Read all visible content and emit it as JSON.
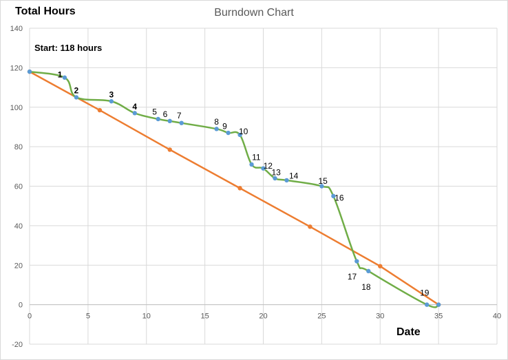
{
  "chart_data": {
    "type": "line",
    "title": "Burndown Chart",
    "ylabel": "Total Hours",
    "xlabel": "Date",
    "note": "Start: 118 hours",
    "xlim": [
      0,
      40
    ],
    "ylim": [
      -20,
      140
    ],
    "x_ticks": [
      0,
      5,
      10,
      15,
      20,
      25,
      30,
      35,
      40
    ],
    "y_ticks": [
      -20,
      0,
      20,
      40,
      60,
      80,
      100,
      120,
      140
    ],
    "grid": true,
    "colors": {
      "ideal": "#ed7d31",
      "actual": "#70ad47",
      "actual_marker": "#5b9bd5",
      "grid": "#d9d9d9"
    },
    "series": [
      {
        "points": [
          [
            0,
            118
          ],
          [
            6,
            98.5
          ],
          [
            12,
            78.5
          ],
          [
            18,
            59
          ],
          [
            24,
            39.5
          ],
          [
            30,
            19.5
          ],
          [
            35,
            0
          ]
        ]
      },
      {
        "points": [
          [
            0,
            118
          ],
          [
            3,
            115
          ],
          [
            4,
            105
          ],
          [
            7,
            103
          ],
          [
            9,
            97
          ],
          [
            11,
            94
          ],
          [
            12,
            93
          ],
          [
            13,
            92
          ],
          [
            16,
            89
          ],
          [
            17,
            87
          ],
          [
            18,
            86
          ],
          [
            19,
            71
          ],
          [
            20,
            69
          ],
          [
            21,
            64
          ],
          [
            22,
            63
          ],
          [
            25,
            60
          ],
          [
            26,
            55
          ],
          [
            28,
            22
          ],
          [
            29,
            17
          ],
          [
            34,
            0
          ],
          [
            35,
            0
          ]
        ]
      }
    ],
    "annotations": [
      {
        "text": "1",
        "x": 2.6,
        "y": 116.5,
        "bold": true
      },
      {
        "text": "2",
        "x": 4.0,
        "y": 108.5,
        "bold": true
      },
      {
        "text": "3",
        "x": 7.0,
        "y": 106.3,
        "bold": true
      },
      {
        "text": "4",
        "x": 9.0,
        "y": 100.2,
        "bold": true
      },
      {
        "text": "5",
        "x": 10.7,
        "y": 97.6,
        "bold": false
      },
      {
        "text": "6",
        "x": 11.6,
        "y": 96.5,
        "bold": false
      },
      {
        "text": "7",
        "x": 12.8,
        "y": 95.7,
        "bold": false
      },
      {
        "text": "8",
        "x": 16.0,
        "y": 92.6,
        "bold": false
      },
      {
        "text": "9",
        "x": 16.7,
        "y": 90.4,
        "bold": false
      },
      {
        "text": "10",
        "x": 18.3,
        "y": 87.7,
        "bold": false
      },
      {
        "text": "11",
        "x": 19.4,
        "y": 74.7,
        "bold": false
      },
      {
        "text": "12",
        "x": 20.4,
        "y": 70.3,
        "bold": false
      },
      {
        "text": "13",
        "x": 21.1,
        "y": 67.0,
        "bold": false
      },
      {
        "text": "14",
        "x": 22.6,
        "y": 65.2,
        "bold": false
      },
      {
        "text": "15",
        "x": 25.1,
        "y": 62.7,
        "bold": false
      },
      {
        "text": "16",
        "x": 26.5,
        "y": 54.1,
        "bold": false
      },
      {
        "text": "17",
        "x": 27.6,
        "y": 14.2,
        "bold": false
      },
      {
        "text": "18",
        "x": 28.8,
        "y": 9.0,
        "bold": false
      },
      {
        "text": "19",
        "x": 33.8,
        "y": 6.0,
        "bold": false
      }
    ]
  }
}
